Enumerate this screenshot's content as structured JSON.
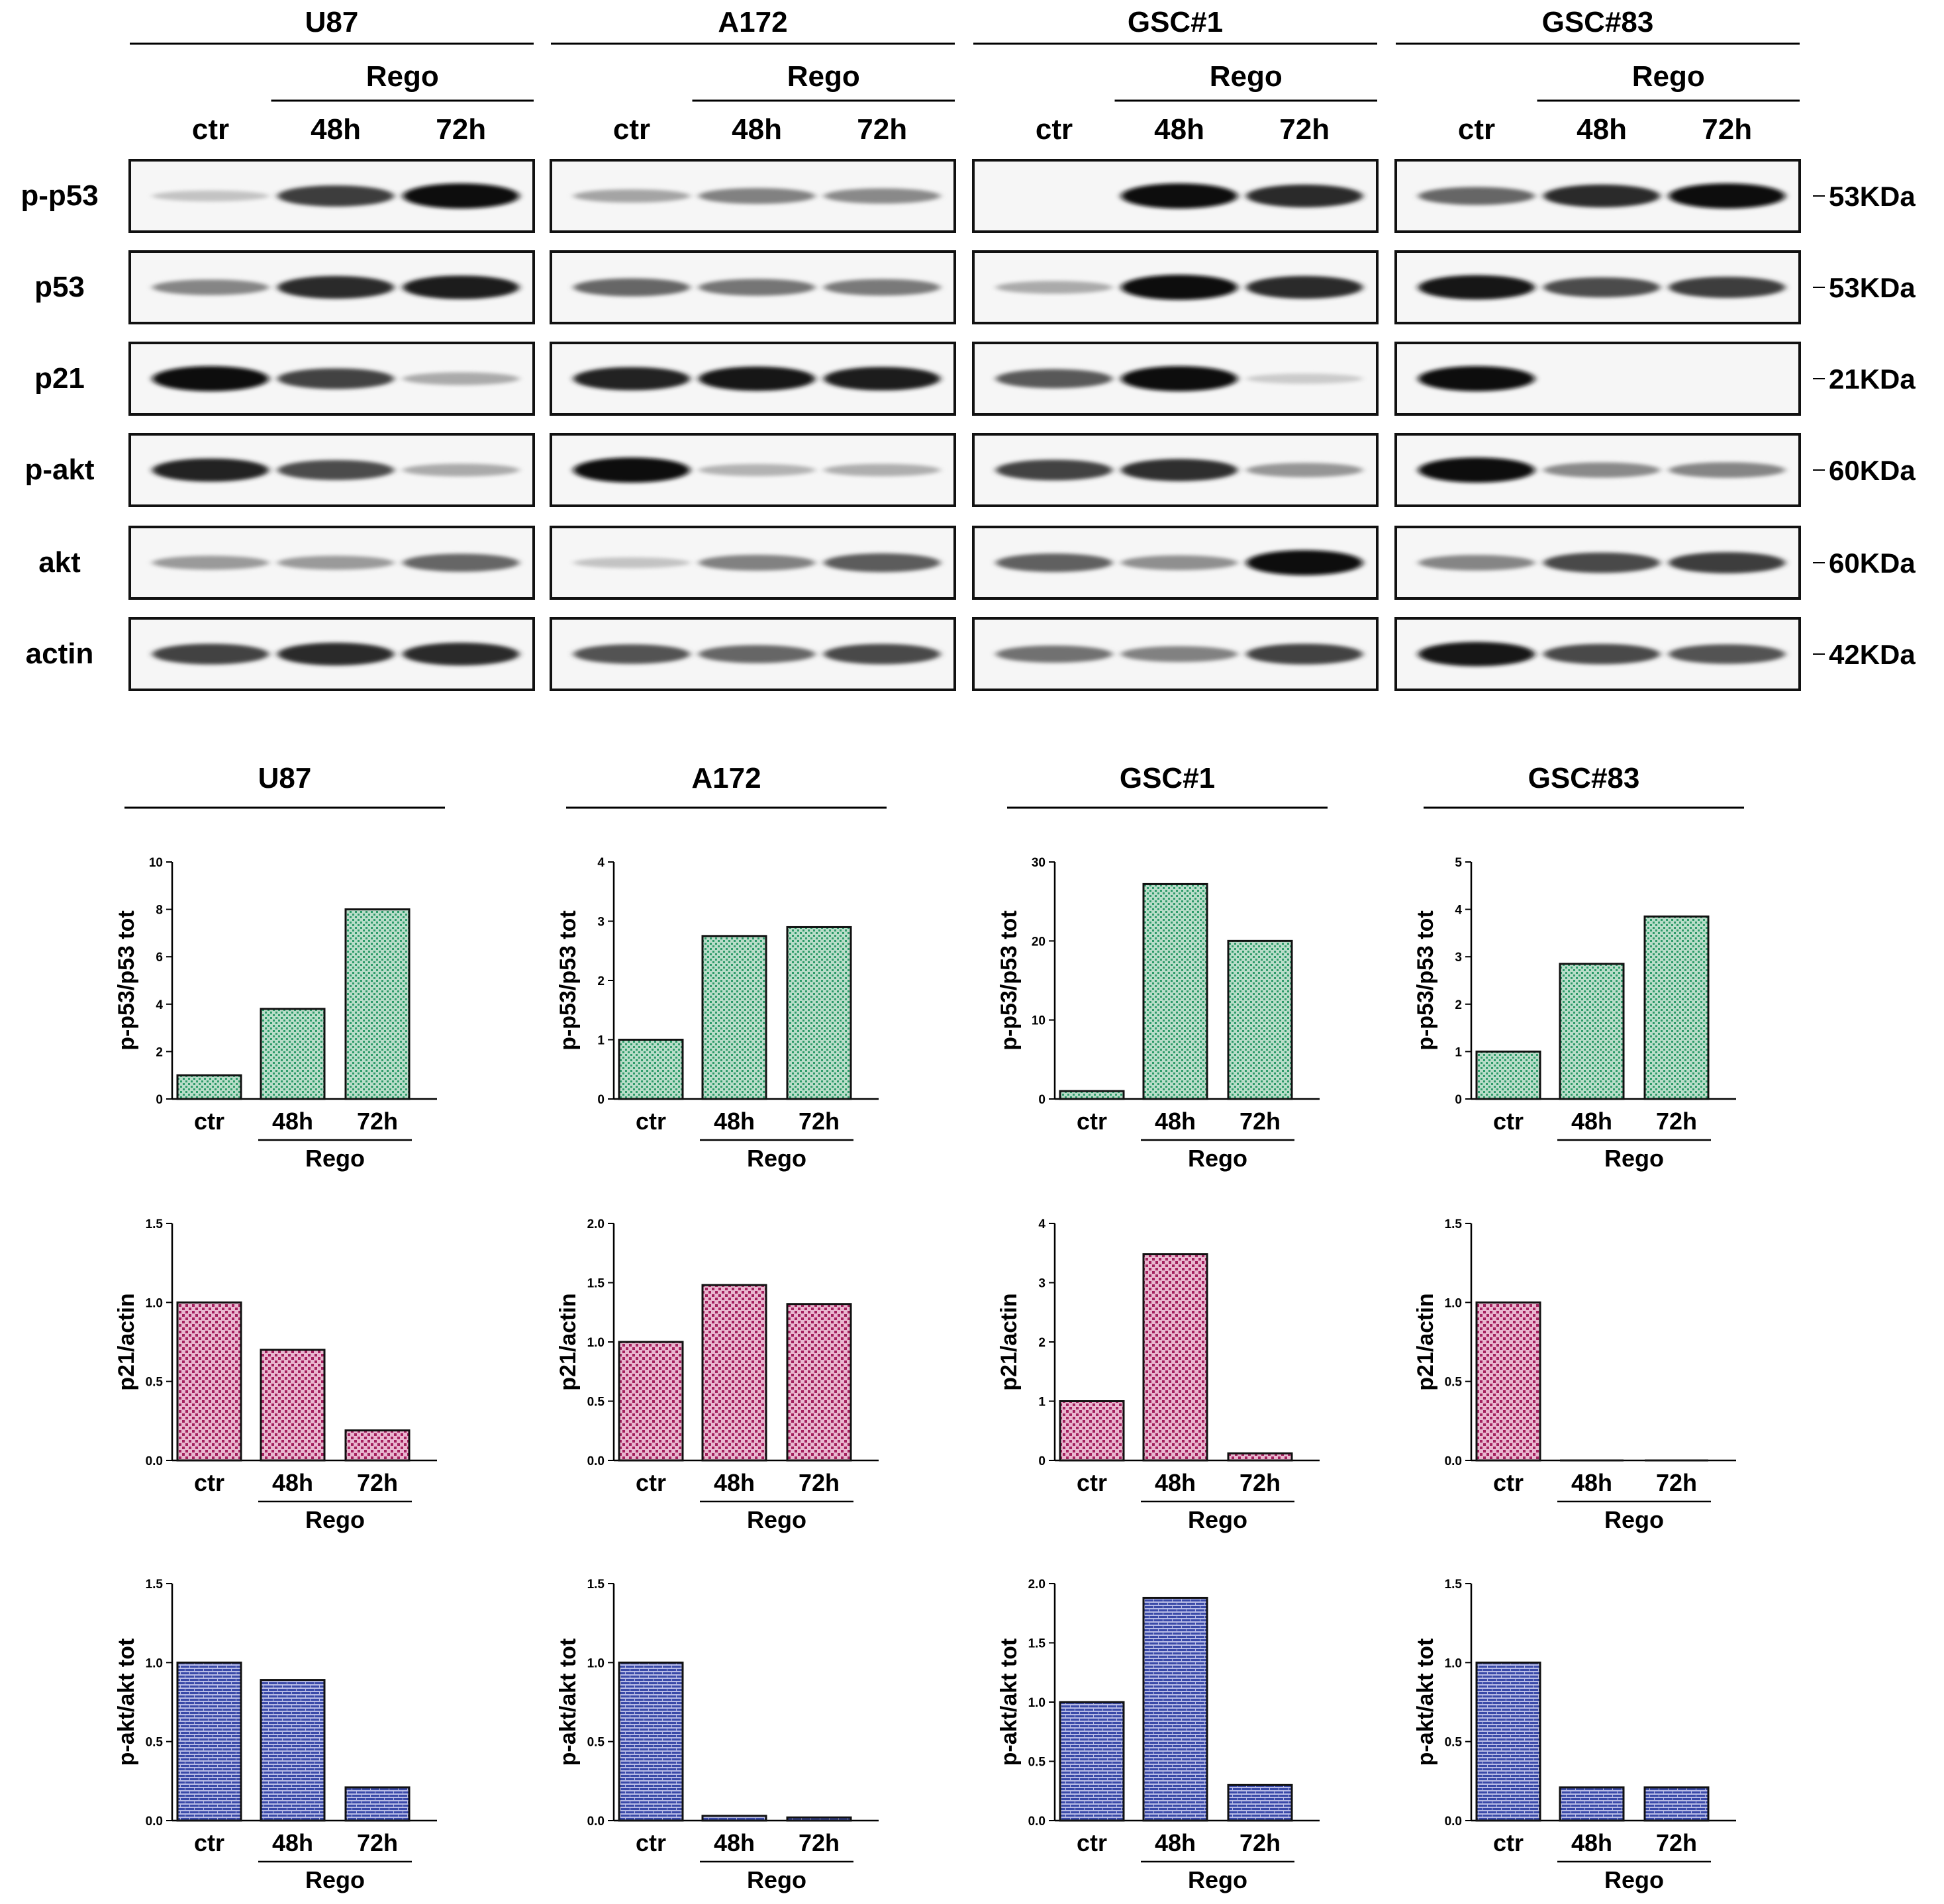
{
  "blot": {
    "cell_lines": [
      "U87",
      "A172",
      "GSC#1",
      "GSC#83"
    ],
    "treatment_label": "Rego",
    "lanes": [
      "ctr",
      "48h",
      "72h"
    ],
    "rows": [
      {
        "protein": "p-p53",
        "marker": "53KDa",
        "intensities": [
          [
            0.1,
            0.75,
            1.0
          ],
          [
            0.25,
            0.42,
            0.38
          ],
          [
            0.0,
            1.0,
            0.85
          ],
          [
            0.55,
            0.85,
            1.0
          ]
        ]
      },
      {
        "protein": "p53",
        "marker": "53KDa",
        "intensities": [
          [
            0.4,
            0.85,
            0.9
          ],
          [
            0.55,
            0.48,
            0.46
          ],
          [
            0.22,
            1.0,
            0.85
          ],
          [
            0.95,
            0.68,
            0.75
          ]
        ]
      },
      {
        "protein": "p21",
        "marker": "21KDa",
        "intensities": [
          [
            1.0,
            0.72,
            0.22
          ],
          [
            0.88,
            0.95,
            0.9
          ],
          [
            0.62,
            1.0,
            0.06
          ],
          [
            1.0,
            0.0,
            0.0
          ]
        ]
      },
      {
        "protein": "p-akt",
        "marker": "60KDa",
        "intensities": [
          [
            0.88,
            0.68,
            0.22
          ],
          [
            1.0,
            0.18,
            0.2
          ],
          [
            0.72,
            0.82,
            0.32
          ],
          [
            1.0,
            0.38,
            0.4
          ]
        ]
      },
      {
        "protein": "akt",
        "marker": "60KDa",
        "intensities": [
          [
            0.3,
            0.3,
            0.55
          ],
          [
            0.1,
            0.42,
            0.6
          ],
          [
            0.58,
            0.35,
            1.0
          ],
          [
            0.4,
            0.7,
            0.75
          ]
        ]
      },
      {
        "protein": "actin",
        "marker": "42KDa",
        "intensities": [
          [
            0.72,
            0.85,
            0.85
          ],
          [
            0.65,
            0.55,
            0.7
          ],
          [
            0.5,
            0.42,
            0.72
          ],
          [
            0.95,
            0.7,
            0.65
          ]
        ]
      }
    ]
  },
  "chart_data": [
    {
      "type": "bar",
      "panel": "U87",
      "ylabel": "p-p53/p53 tot",
      "categories": [
        "ctr",
        "48h",
        "72h"
      ],
      "group_label": "Rego",
      "values": [
        1.0,
        3.8,
        8.0
      ],
      "ylim": [
        0,
        10
      ],
      "yticks": [
        "0",
        "2",
        "4",
        "6",
        "8",
        "10"
      ],
      "pattern": "green"
    },
    {
      "type": "bar",
      "panel": "A172",
      "ylabel": "p-p53/p53 tot",
      "categories": [
        "ctr",
        "48h",
        "72h"
      ],
      "group_label": "Rego",
      "values": [
        1.0,
        2.75,
        2.9
      ],
      "ylim": [
        0,
        4
      ],
      "yticks": [
        "0",
        "1",
        "2",
        "3",
        "4"
      ],
      "pattern": "green"
    },
    {
      "type": "bar",
      "panel": "GSC#1",
      "ylabel": "p-p53/p53 tot",
      "categories": [
        "ctr",
        "48h",
        "72h"
      ],
      "group_label": "Rego",
      "values": [
        1.0,
        27.2,
        20.0
      ],
      "ylim": [
        0,
        30
      ],
      "yticks": [
        "0",
        "10",
        "20",
        "30"
      ],
      "pattern": "green"
    },
    {
      "type": "bar",
      "panel": "GSC#83",
      "ylabel": "p-p53/p53 tot",
      "categories": [
        "ctr",
        "48h",
        "72h"
      ],
      "group_label": "Rego",
      "values": [
        1.0,
        2.85,
        3.85
      ],
      "ylim": [
        0,
        5
      ],
      "yticks": [
        "0",
        "1",
        "2",
        "3",
        "4",
        "5"
      ],
      "pattern": "green"
    },
    {
      "type": "bar",
      "panel": "U87",
      "ylabel": "p21/actin",
      "categories": [
        "ctr",
        "48h",
        "72h"
      ],
      "group_label": "Rego",
      "values": [
        1.0,
        0.7,
        0.19
      ],
      "ylim": [
        0,
        1.5
      ],
      "yticks": [
        "0.0",
        "0.5",
        "1.0",
        "1.5"
      ],
      "pattern": "pink"
    },
    {
      "type": "bar",
      "panel": "A172",
      "ylabel": "p21/actin",
      "categories": [
        "ctr",
        "48h",
        "72h"
      ],
      "group_label": "Rego",
      "values": [
        1.0,
        1.48,
        1.32
      ],
      "ylim": [
        0,
        2.0
      ],
      "yticks": [
        "0.0",
        "0.5",
        "1.0",
        "1.5",
        "2.0"
      ],
      "pattern": "pink"
    },
    {
      "type": "bar",
      "panel": "GSC#1",
      "ylabel": "p21/actin",
      "categories": [
        "ctr",
        "48h",
        "72h"
      ],
      "group_label": "Rego",
      "values": [
        1.0,
        3.48,
        0.12
      ],
      "ylim": [
        0,
        4
      ],
      "yticks": [
        "0",
        "1",
        "2",
        "3",
        "4"
      ],
      "pattern": "pink"
    },
    {
      "type": "bar",
      "panel": "GSC#83",
      "ylabel": "p21/actin",
      "categories": [
        "ctr",
        "48h",
        "72h"
      ],
      "group_label": "Rego",
      "values": [
        1.0,
        0.0,
        0.0
      ],
      "ylim": [
        0,
        1.5
      ],
      "yticks": [
        "0.0",
        "0.5",
        "1.0",
        "1.5"
      ],
      "pattern": "pink"
    },
    {
      "type": "bar",
      "panel": "U87",
      "ylabel": "p-akt/akt tot",
      "categories": [
        "ctr",
        "48h",
        "72h"
      ],
      "group_label": "Rego",
      "values": [
        1.0,
        0.89,
        0.21
      ],
      "ylim": [
        0,
        1.5
      ],
      "yticks": [
        "0.0",
        "0.5",
        "1.0",
        "1.5"
      ],
      "pattern": "blue"
    },
    {
      "type": "bar",
      "panel": "A172",
      "ylabel": "p-akt/akt tot",
      "categories": [
        "ctr",
        "48h",
        "72h"
      ],
      "group_label": "Rego",
      "values": [
        1.0,
        0.03,
        0.02
      ],
      "ylim": [
        0,
        1.5
      ],
      "yticks": [
        "0.0",
        "0.5",
        "1.0",
        "1.5"
      ],
      "pattern": "blue"
    },
    {
      "type": "bar",
      "panel": "GSC#1",
      "ylabel": "p-akt/akt tot",
      "categories": [
        "ctr",
        "48h",
        "72h"
      ],
      "group_label": "Rego",
      "values": [
        1.0,
        1.88,
        0.3
      ],
      "ylim": [
        0,
        2.0
      ],
      "yticks": [
        "0.0",
        "0.5",
        "1.0",
        "1.5",
        "2.0"
      ],
      "pattern": "blue"
    },
    {
      "type": "bar",
      "panel": "GSC#83",
      "ylabel": "p-akt/akt tot",
      "categories": [
        "ctr",
        "48h",
        "72h"
      ],
      "group_label": "Rego",
      "values": [
        1.0,
        0.21,
        0.21
      ],
      "ylim": [
        0,
        1.5
      ],
      "yticks": [
        "0.0",
        "0.5",
        "1.0",
        "1.5"
      ],
      "pattern": "blue"
    }
  ],
  "pattern_colors": {
    "green": {
      "fill": "#b9ddc9",
      "dot": "#2e9b6a"
    },
    "pink": {
      "fill": "#e9b7cf",
      "dot": "#a3205e"
    },
    "blue": {
      "fill": "#b8bce6",
      "dot": "#3a4aa8"
    }
  }
}
